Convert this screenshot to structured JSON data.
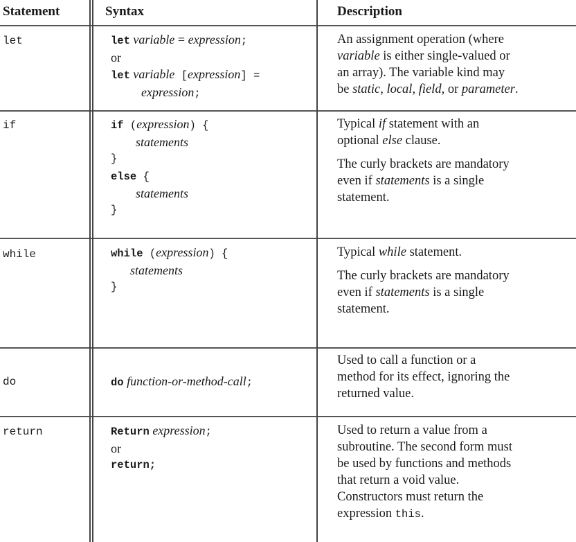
{
  "headers": {
    "statement": "Statement",
    "syntax": "Syntax",
    "description": "Description"
  },
  "rows": {
    "let": {
      "statement": "let",
      "syntax": {
        "l1_kw": "let",
        "l1_a": "variable",
        "l1_b": " = ",
        "l1_c": "expression",
        "l1_d": ";",
        "l2": "or",
        "l3_kw": "let",
        "l3_a": "variable",
        "l3_b": " [",
        "l3_c": "expression",
        "l3_d": "] =",
        "l4_a": "expression",
        "l4_b": ";"
      },
      "desc": {
        "l1": "An assignment operation (where",
        "l2_a": "variable",
        "l2_b": " is either single-valued or",
        "l3": "an array). The variable kind may",
        "l4_a": "be ",
        "l4_b": "static",
        "l4_c": ", ",
        "l4_d": "local",
        "l4_e": ", ",
        "l4_f": "field",
        "l4_g": ", or ",
        "l4_h": "parameter",
        "l4_i": "."
      }
    },
    "if": {
      "statement": "if",
      "syntax": {
        "l1_kw": "if",
        "l1_a": " (",
        "l1_b": "expression",
        "l1_c": ") {",
        "l2": "statements",
        "l3": "}",
        "l4_kw": "else",
        "l4_a": " {",
        "l5": "statements",
        "l6": "}"
      },
      "desc": {
        "p1_l1_a": "Typical ",
        "p1_l1_b": "if",
        "p1_l1_c": " statement with an",
        "p1_l2_a": "optional ",
        "p1_l2_b": "else",
        "p1_l2_c": " clause.",
        "p2_l1": "The curly brackets are mandatory",
        "p2_l2_a": "even if ",
        "p2_l2_b": "statements",
        "p2_l2_c": " is a single",
        "p2_l3": "statement."
      }
    },
    "while": {
      "statement": "while",
      "syntax": {
        "l1_kw": "while",
        "l1_a": " (",
        "l1_b": "expression",
        "l1_c": ") {",
        "l2": "statements",
        "l3": "}"
      },
      "desc": {
        "p1_l1_a": "Typical ",
        "p1_l1_b": "while",
        "p1_l1_c": " statement.",
        "p2_l1": "The curly brackets are mandatory",
        "p2_l2_a": "even if ",
        "p2_l2_b": "statements",
        "p2_l2_c": " is a single",
        "p2_l3": "statement."
      }
    },
    "do": {
      "statement": "do",
      "syntax": {
        "l1_kw": "do",
        "l1_a": "function-or-method-call",
        "l1_b": ";"
      },
      "desc": {
        "l1": "Used to call a function or a",
        "l2": "method for its effect, ignoring the",
        "l3": "returned value."
      }
    },
    "return": {
      "statement": "return",
      "syntax": {
        "l1_kw": "Return",
        "l1_a": "expression",
        "l1_b": ";",
        "l2": "or",
        "l3_kw": "return;"
      },
      "desc": {
        "l1": "Used to return a value from a",
        "l2": "subroutine. The second form must",
        "l3": "be used by functions and methods",
        "l4": "that return a void value.",
        "l5": "Constructors must return the",
        "l6_a": "expression ",
        "l6_b": "this",
        "l6_c": "."
      }
    }
  }
}
